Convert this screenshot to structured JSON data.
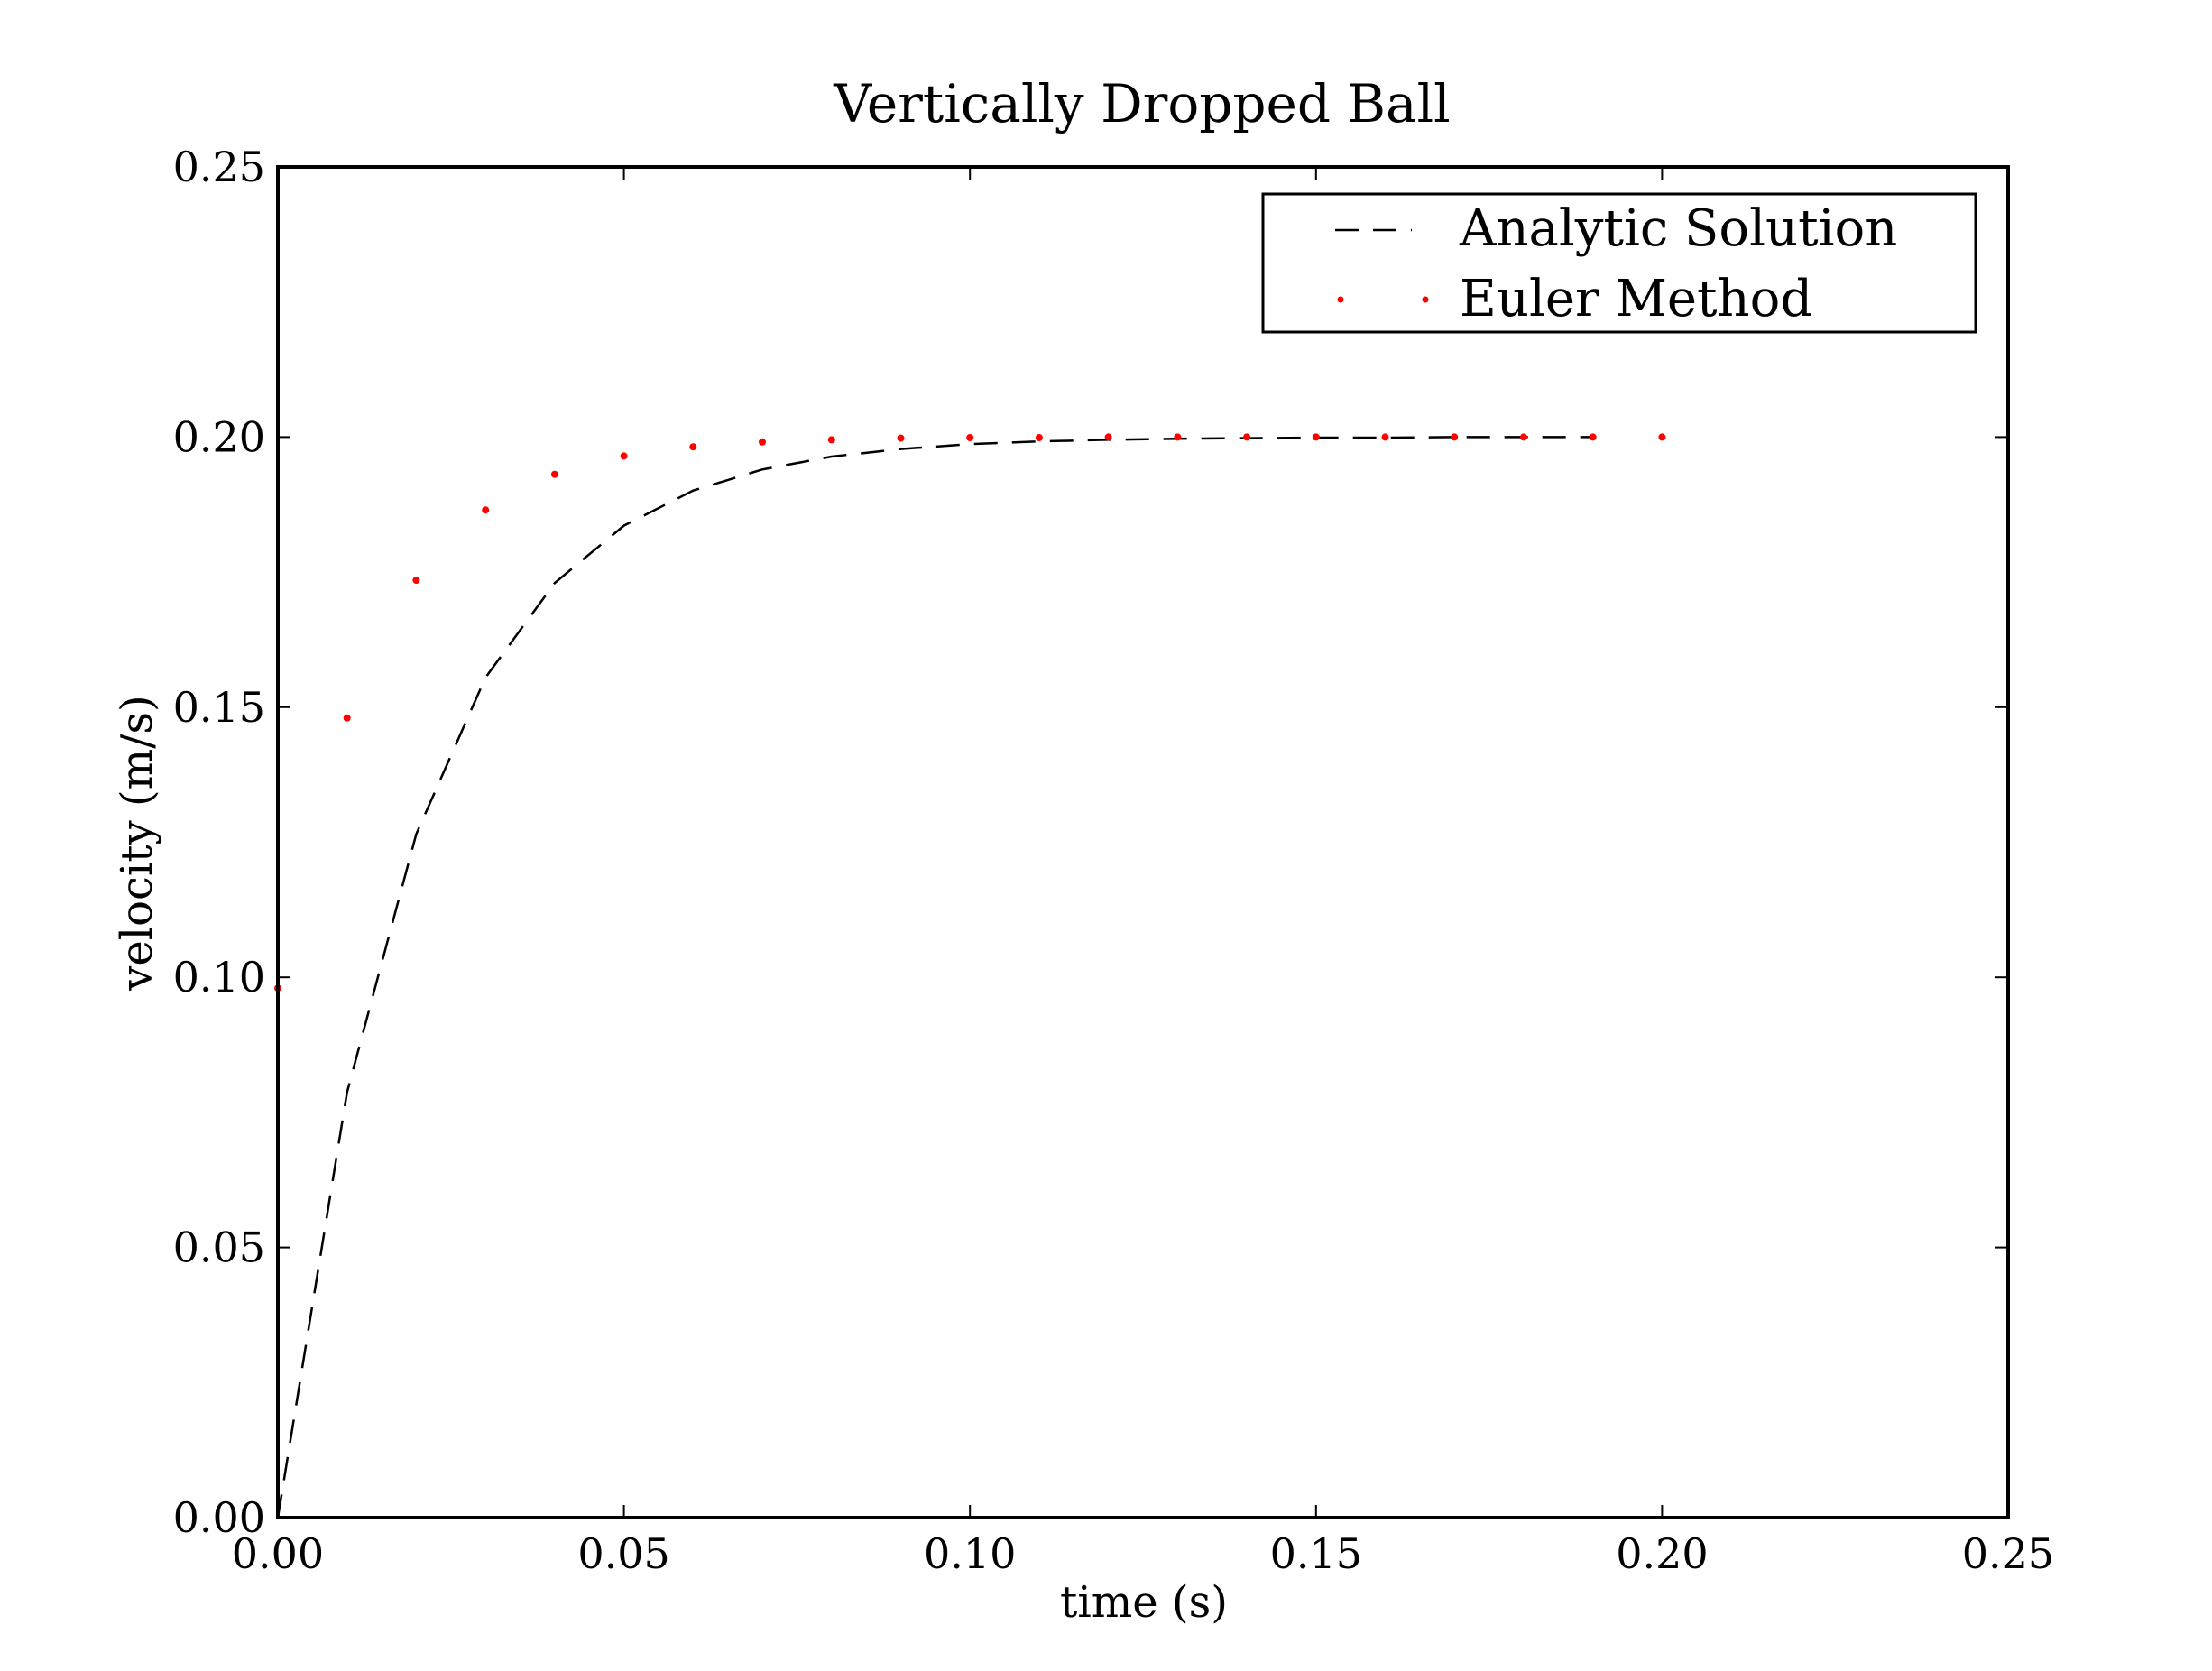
{
  "chart_data": {
    "type": "line",
    "title": "Vertically Dropped Ball",
    "xlabel": "time (s)",
    "ylabel": "velocity (m/s)",
    "xlim": [
      0.0,
      0.25
    ],
    "ylim": [
      0.0,
      0.25
    ],
    "x_ticks": [
      "0.00",
      "0.05",
      "0.10",
      "0.15",
      "0.20",
      "0.25"
    ],
    "y_ticks": [
      "0.00",
      "0.05",
      "0.10",
      "0.15",
      "0.20",
      "0.25"
    ],
    "x_tick_values": [
      0.0,
      0.05,
      0.1,
      0.15,
      0.2,
      0.25
    ],
    "y_tick_values": [
      0.0,
      0.05,
      0.1,
      0.15,
      0.2,
      0.25
    ],
    "grid": false,
    "legend_position": "top-right",
    "series": [
      {
        "name": "Analytic Solution",
        "style": "dashed",
        "color": "#000000",
        "x": [
          0.0,
          0.01,
          0.02,
          0.03,
          0.04,
          0.05,
          0.06,
          0.07,
          0.08,
          0.09,
          0.1,
          0.11,
          0.12,
          0.13,
          0.14,
          0.15,
          0.16,
          0.17,
          0.18,
          0.19
        ],
        "y": [
          0.0,
          0.0787,
          0.1265,
          0.1555,
          0.173,
          0.1836,
          0.1901,
          0.194,
          0.1964,
          0.1978,
          0.1987,
          0.1992,
          0.1995,
          0.1997,
          0.1998,
          0.1999,
          0.1999,
          0.2,
          0.2,
          0.2
        ]
      },
      {
        "name": "Euler Method",
        "style": "dotted-markers",
        "color": "#ff0000",
        "x": [
          0.0,
          0.01,
          0.02,
          0.03,
          0.04,
          0.05,
          0.06,
          0.07,
          0.08,
          0.09,
          0.1,
          0.11,
          0.12,
          0.13,
          0.14,
          0.15,
          0.16,
          0.17,
          0.18,
          0.19,
          0.2
        ],
        "y": [
          0.098,
          0.148,
          0.1735,
          0.1865,
          0.1931,
          0.1965,
          0.1982,
          0.1991,
          0.1995,
          0.1998,
          0.1999,
          0.1999,
          0.2,
          0.2,
          0.2,
          0.2,
          0.2,
          0.2,
          0.2,
          0.2,
          0.2
        ]
      }
    ]
  }
}
